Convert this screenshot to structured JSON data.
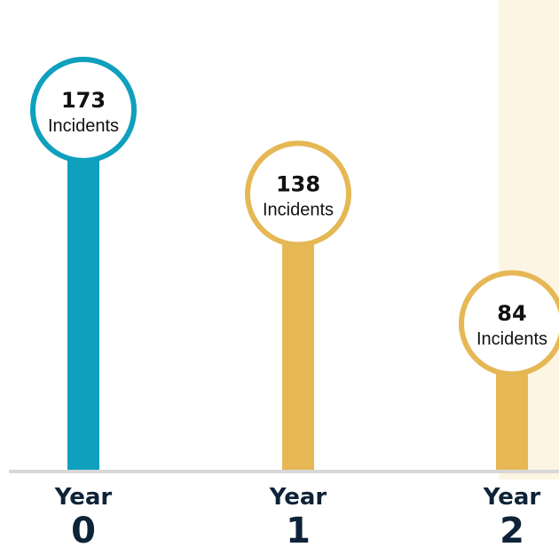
{
  "chart_data": {
    "type": "bar",
    "categories": [
      {
        "word": "Year",
        "number": "0"
      },
      {
        "word": "Year",
        "number": "1"
      },
      {
        "word": "Year",
        "number": "2"
      }
    ],
    "values": [
      173,
      138,
      84
    ],
    "unit_label": "Incidents",
    "ylim": [
      0,
      190
    ],
    "grid": false,
    "colors": {
      "baseline": "#e97c13",
      "year0": "#0fa0bd",
      "year1": "#e5b855",
      "year2": "#e5b855",
      "highlight_panel": "#fdf5e3",
      "label_text": "#0e2338",
      "circle_fill": "#ffffff",
      "axis_line": "#d8d8d8"
    }
  }
}
